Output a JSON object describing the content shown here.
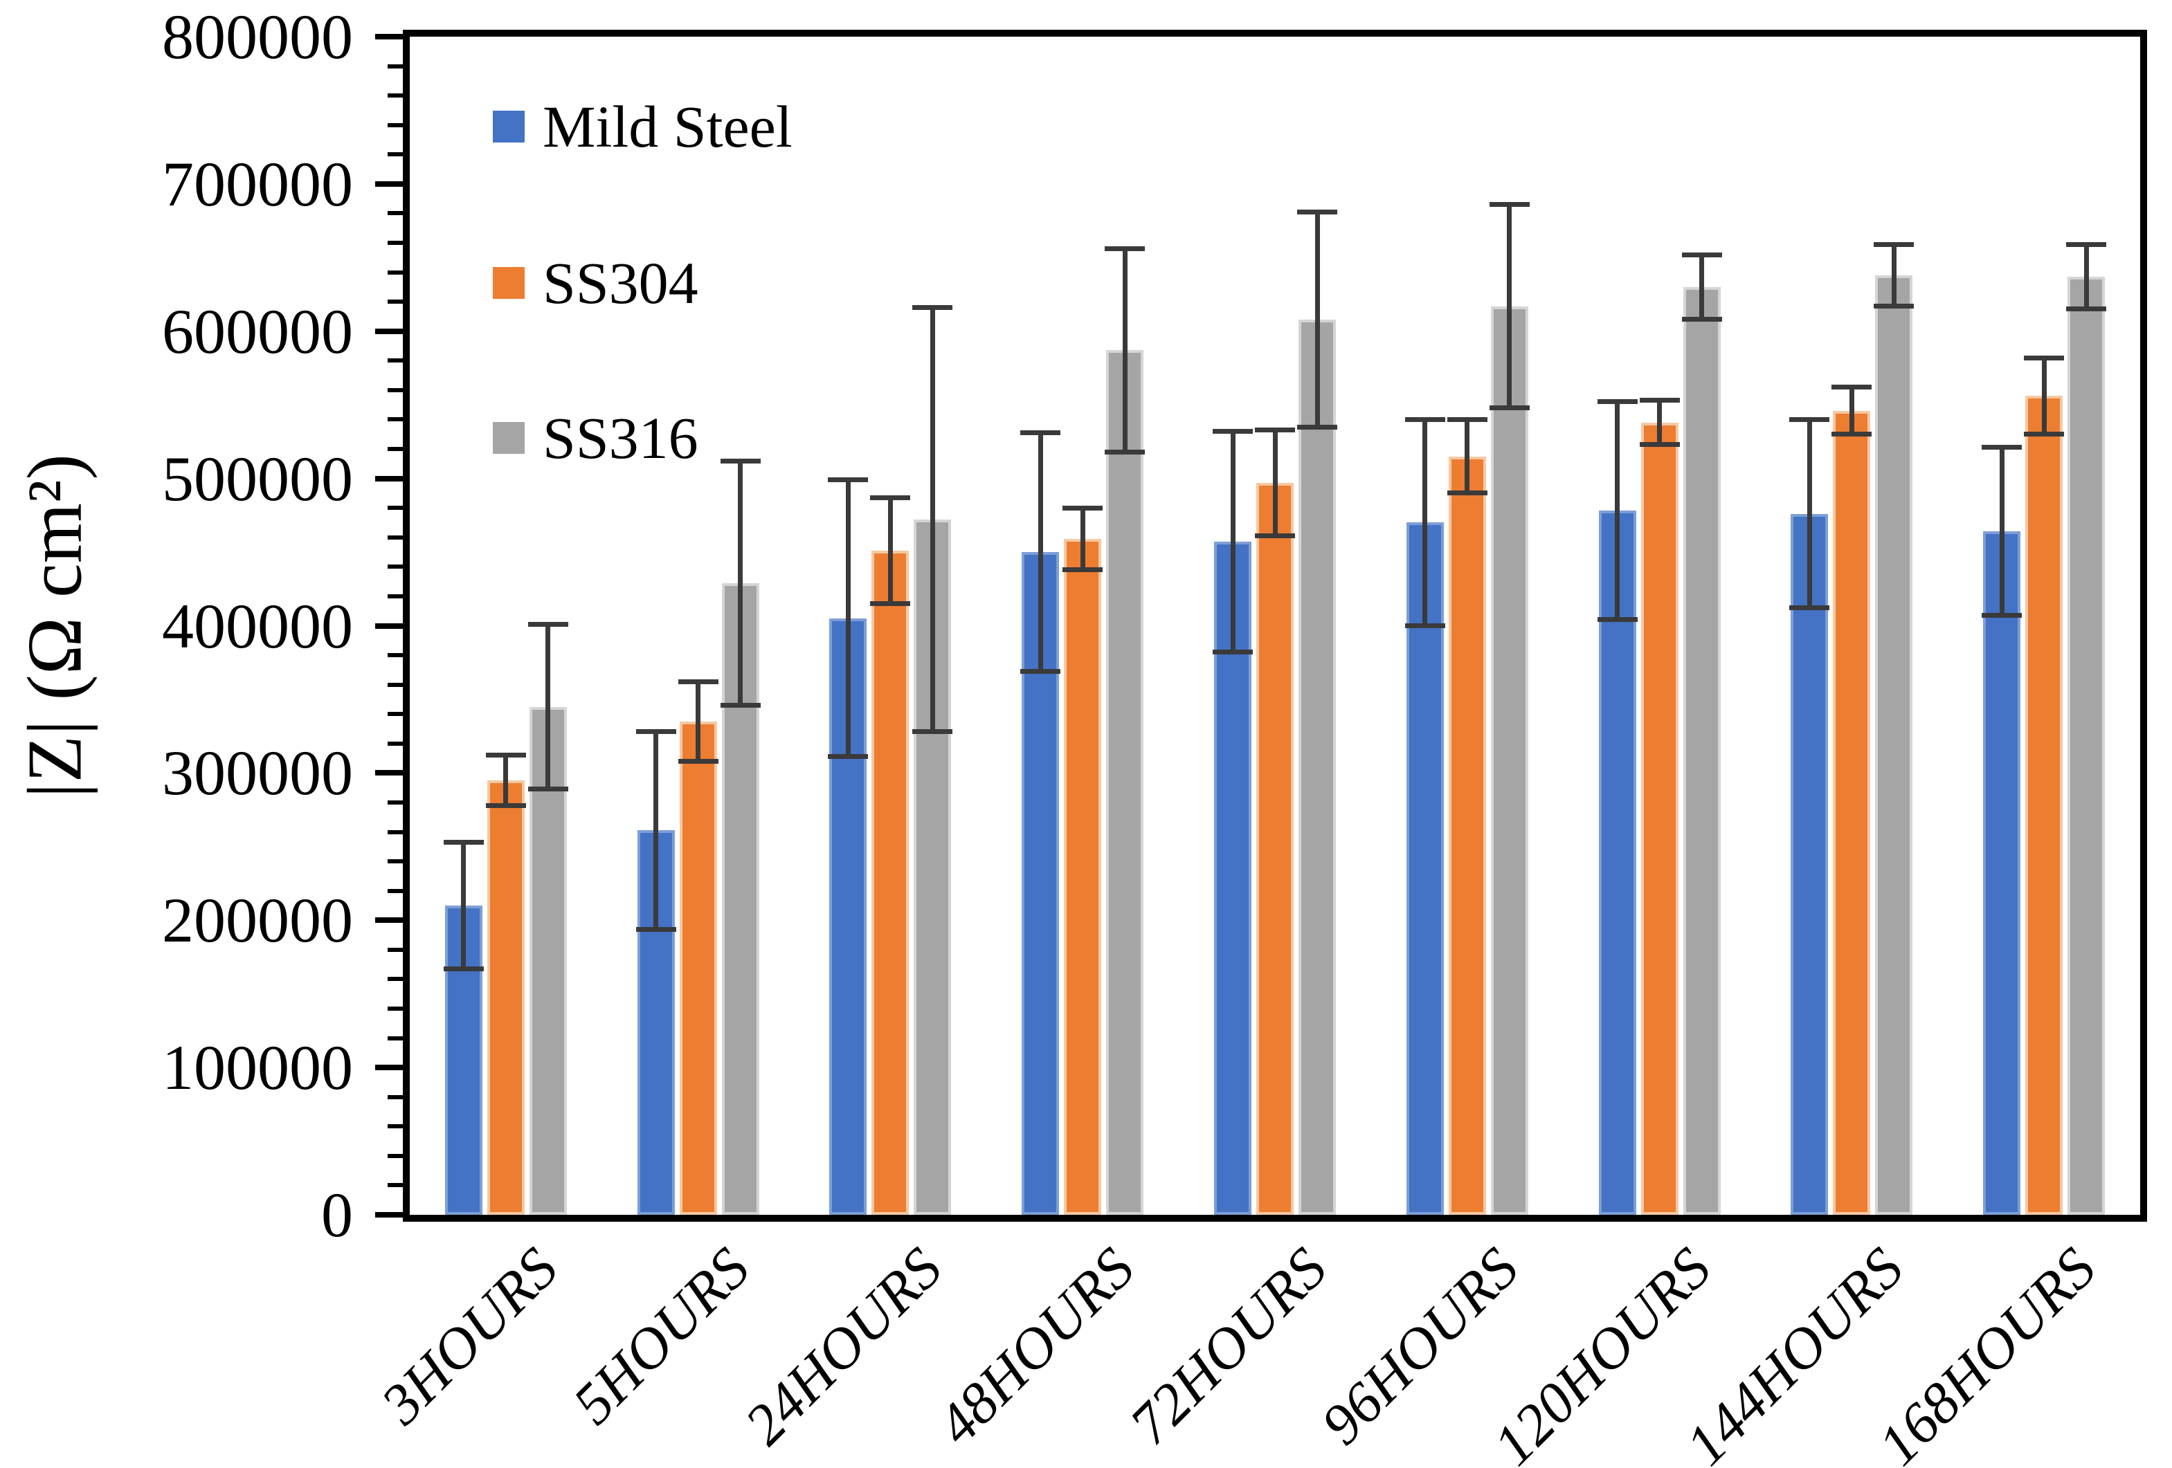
{
  "chart_data": {
    "type": "bar",
    "title": "",
    "xlabel": "",
    "ylabel": "|Z| (Ω cm²)",
    "ylim": [
      0,
      800000
    ],
    "grid": false,
    "legend_position": "top-left-inside",
    "categories": [
      "3HOURS",
      "5HOURS",
      "24HOURS",
      "48HOURS",
      "72HOURS",
      "96HOURS",
      "120HOURS",
      "144HOURS",
      "168HOURS"
    ],
    "series": [
      {
        "name": "Mild Steel",
        "color": "#4472C4",
        "values": [
          210000,
          261000,
          405000,
          450000,
          457000,
          470000,
          478000,
          476000,
          464000
        ],
        "errors": [
          43000,
          67000,
          94000,
          81000,
          75000,
          70000,
          74000,
          64000,
          57000
        ]
      },
      {
        "name": "SS304",
        "color": "#ED7D31",
        "values": [
          295000,
          335000,
          451000,
          459000,
          497000,
          515000,
          538000,
          546000,
          556000
        ],
        "errors": [
          17000,
          27000,
          36000,
          21000,
          36000,
          25000,
          15000,
          16000,
          26000
        ]
      },
      {
        "name": "SS316",
        "color": "#A5A5A5",
        "values": [
          345000,
          429000,
          472000,
          587000,
          608000,
          617000,
          630000,
          638000,
          637000
        ],
        "errors": [
          56000,
          83000,
          144000,
          69000,
          73000,
          69000,
          22000,
          21000,
          22000
        ]
      }
    ]
  },
  "y_axis": {
    "min": 0,
    "max": 800000,
    "major_step": 100000,
    "minor_step": 20000,
    "tick_labels": [
      "800000",
      "700000",
      "600000",
      "500000",
      "400000",
      "300000",
      "200000",
      "100000",
      "0"
    ]
  }
}
